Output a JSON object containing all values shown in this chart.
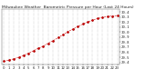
{
  "title": "Milwaukee Weather  Barometric Pressure per Hour (Last 24 Hours)",
  "hours": [
    0,
    1,
    2,
    3,
    4,
    5,
    6,
    7,
    8,
    9,
    10,
    11,
    12,
    13,
    14,
    15,
    16,
    17,
    18,
    19,
    20,
    21,
    22,
    23
  ],
  "pressure": [
    29.42,
    29.44,
    29.47,
    29.5,
    29.54,
    29.58,
    29.63,
    29.68,
    29.72,
    29.78,
    29.83,
    29.89,
    29.95,
    30.01,
    30.06,
    30.11,
    30.16,
    30.2,
    30.24,
    30.27,
    30.29,
    30.31,
    30.32,
    30.33
  ],
  "line_color": "#cc0000",
  "marker_color": "#cc0000",
  "dot_color": "#222222",
  "bg_color": "#ffffff",
  "grid_color": "#999999",
  "title_fontsize": 3.2,
  "tick_fontsize": 2.8,
  "ylim_min": 29.35,
  "ylim_max": 30.45,
  "ylabel_values": [
    29.4,
    29.5,
    29.6,
    29.7,
    29.8,
    29.9,
    30.0,
    30.1,
    30.2,
    30.3,
    30.4
  ],
  "xlabel_hours": [
    0,
    1,
    2,
    3,
    4,
    5,
    6,
    7,
    8,
    9,
    10,
    11,
    12,
    13,
    14,
    15,
    16,
    17,
    18,
    19,
    20,
    21,
    22,
    23
  ],
  "figwidth": 1.6,
  "figheight": 0.87,
  "dpi": 100
}
